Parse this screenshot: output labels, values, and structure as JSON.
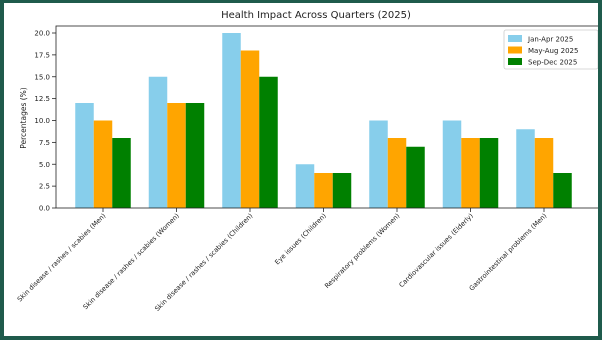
{
  "chart_data": {
    "type": "bar",
    "title": "Health Impact Across Quarters (2025)",
    "xlabel": "",
    "ylabel": "Percentages (%)",
    "ylim": [
      0,
      20.8
    ],
    "yticks": [
      "0.0",
      "2.5",
      "5.0",
      "7.5",
      "10.0",
      "12.5",
      "15.0",
      "17.5",
      "20.0"
    ],
    "grid": false,
    "legend_position": "top-right",
    "categories": [
      "Skin disease / rashes / scabies (Men)",
      "Skin disease / rashes / scabies (Women)",
      "Skin disease / rashes / scabies (Children)",
      "Eye issues (Children)",
      "Respiratory problems (Women)",
      "Cardiovascular issues (Elderly)",
      "Gastrointestinal problems (Men)"
    ],
    "series": [
      {
        "name": "Jan-Apr 2025",
        "color": "#87ceeb",
        "values": [
          12,
          15,
          20,
          5,
          10,
          10,
          9
        ]
      },
      {
        "name": "May-Aug 2025",
        "color": "#ffa500",
        "values": [
          10,
          12,
          18,
          4,
          8,
          8,
          8
        ]
      },
      {
        "name": "Sep-Dec 2025",
        "color": "#008000",
        "values": [
          8,
          12,
          15,
          4,
          7,
          8,
          4
        ]
      }
    ]
  }
}
